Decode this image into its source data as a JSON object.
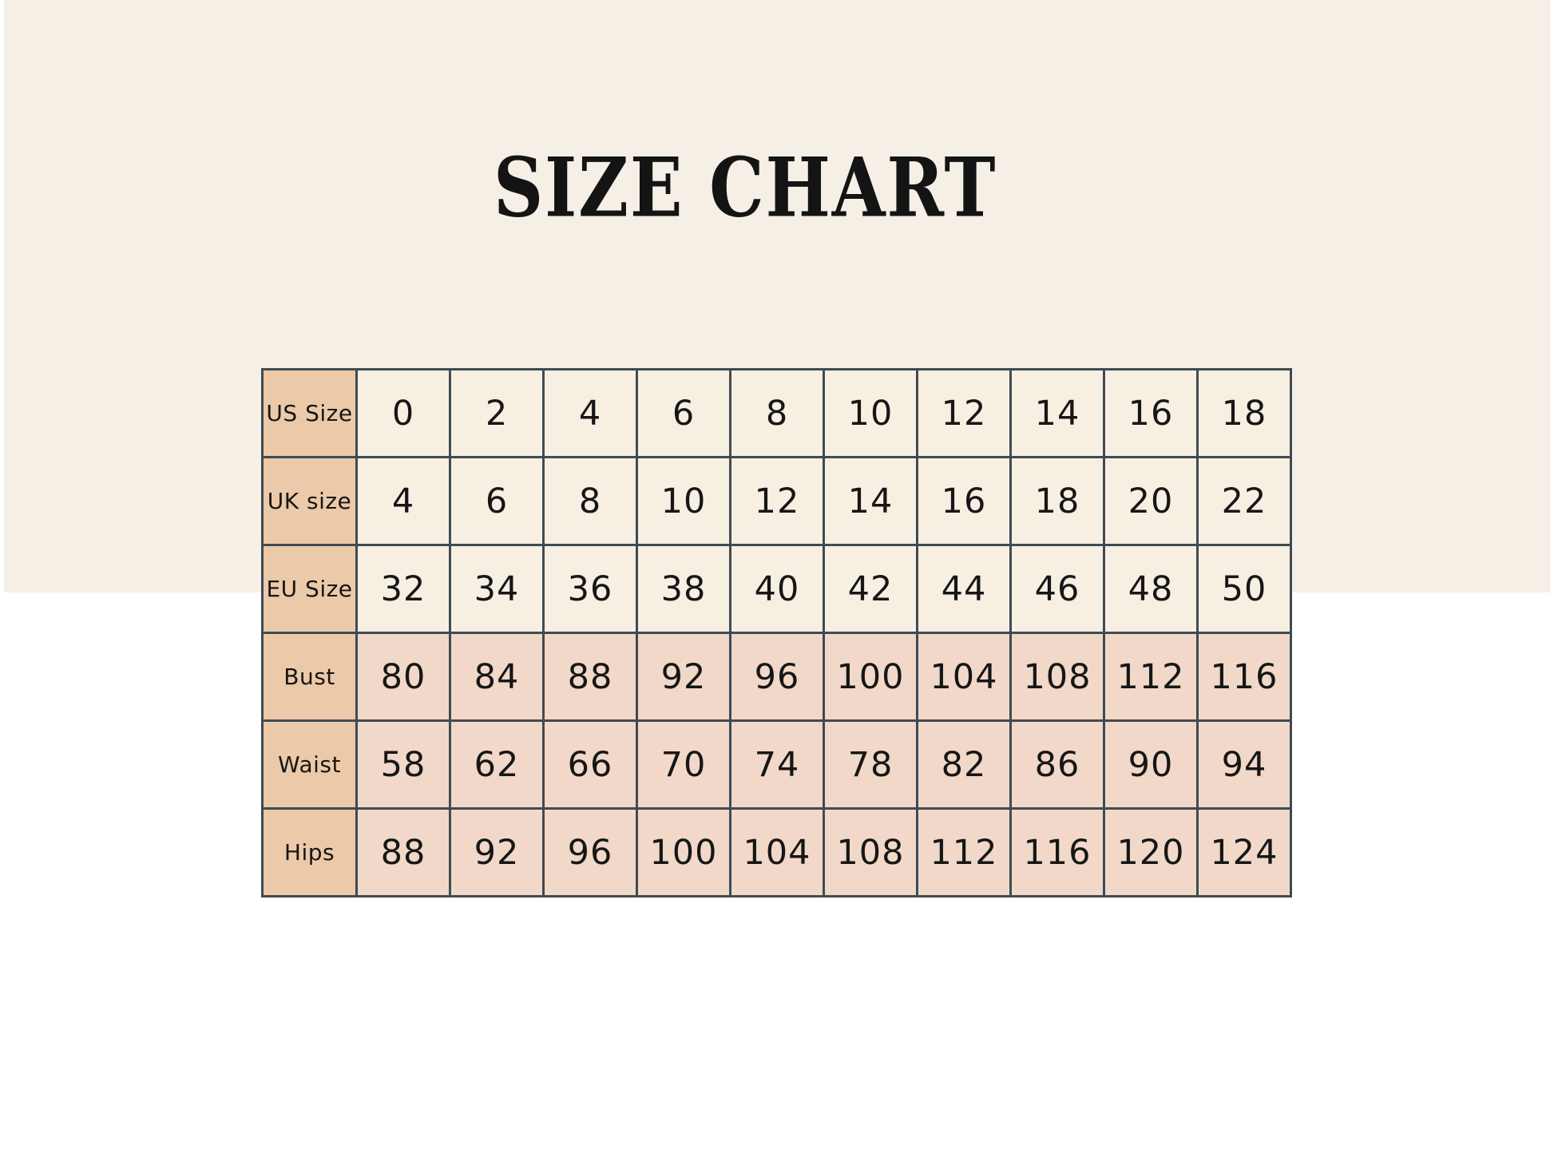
{
  "page": {
    "title": "SIZE CHART"
  },
  "colors": {
    "page_background": "#ffffff",
    "cream_panel": "#f6efe6",
    "header_column": "#ecc9a8",
    "size_row_cell": "#f8efe3",
    "measurement_row_cell": "#f1d8c8",
    "table_border": "#3f4b54",
    "text": "#141414"
  },
  "chart_data": {
    "type": "table",
    "title": "SIZE CHART",
    "row_headers": [
      "US Size",
      "UK size",
      "EU Size",
      "Bust",
      "Waist",
      "Hips"
    ],
    "rows": [
      {
        "label": "US Size",
        "values": [
          "0",
          "2",
          "4",
          "6",
          "8",
          "10",
          "12",
          "14",
          "16",
          "18"
        ]
      },
      {
        "label": "UK size",
        "values": [
          "4",
          "6",
          "8",
          "10",
          "12",
          "14",
          "16",
          "18",
          "20",
          "22"
        ]
      },
      {
        "label": "EU Size",
        "values": [
          "32",
          "34",
          "36",
          "38",
          "40",
          "42",
          "44",
          "46",
          "48",
          "50"
        ]
      },
      {
        "label": "Bust",
        "values": [
          "80",
          "84",
          "88",
          "92",
          "96",
          "100",
          "104",
          "108",
          "112",
          "116"
        ]
      },
      {
        "label": "Waist",
        "values": [
          "58",
          "62",
          "66",
          "70",
          "74",
          "78",
          "82",
          "86",
          "90",
          "94"
        ]
      },
      {
        "label": "Hips",
        "values": [
          "88",
          "92",
          "96",
          "100",
          "104",
          "108",
          "112",
          "116",
          "120",
          "124"
        ]
      }
    ],
    "layout_hints": {
      "columns": 10,
      "header_column_position": "left",
      "grid": true
    }
  }
}
